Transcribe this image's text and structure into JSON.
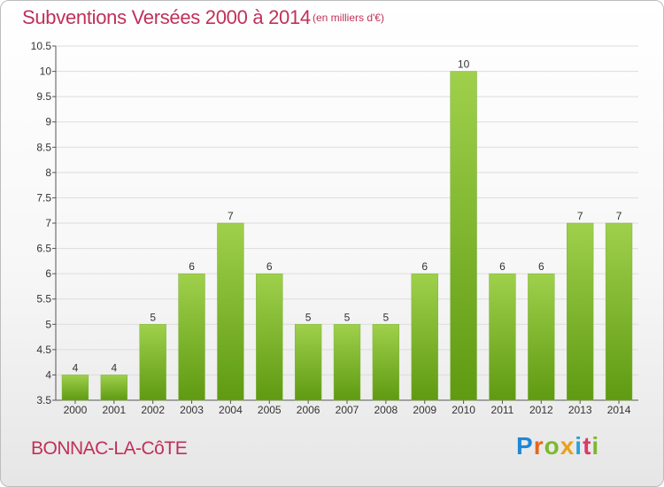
{
  "header": {
    "title": "Subventions Versées 2000 à 2014",
    "subtitle": "(en milliers d'€)"
  },
  "footer": {
    "commune": "BONNAC-LA-CôTE",
    "brand_letters": [
      "P",
      "r",
      "o",
      "x",
      "i",
      "t",
      "i"
    ],
    "brand_colors": [
      "#1e88d6",
      "#e8661c",
      "#7cb82f",
      "#e8a11c",
      "#2aa1d8",
      "#d83a6a",
      "#7cb82f"
    ]
  },
  "chart_data": {
    "type": "bar",
    "title": "Subventions Versées 2000 à 2014",
    "categories": [
      "2000",
      "2001",
      "2002",
      "2003",
      "2004",
      "2005",
      "2006",
      "2007",
      "2008",
      "2009",
      "2010",
      "2011",
      "2012",
      "2013",
      "2014"
    ],
    "values": [
      4,
      4,
      5,
      6,
      7,
      6,
      5,
      5,
      5,
      6,
      10,
      6,
      6,
      7,
      7
    ],
    "ylim": [
      3.5,
      10.5
    ],
    "yticks": [
      3.5,
      4,
      4.5,
      5,
      5.5,
      6,
      6.5,
      7,
      7.5,
      8,
      8.5,
      9,
      9.5,
      10,
      10.5
    ],
    "grid": true,
    "bar_color_top": "#9fd04c",
    "bar_color_bottom": "#5f9a12"
  }
}
